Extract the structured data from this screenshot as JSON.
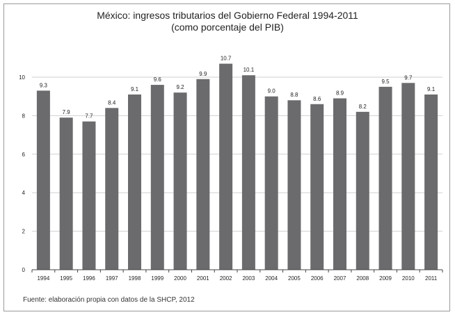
{
  "chart_data": {
    "type": "bar",
    "title": "México: ingresos tributarios del Gobierno Federal 1994-2011",
    "subtitle": "(como porcentaje del PIB)",
    "xlabel": "",
    "ylabel": "",
    "categories": [
      "1994",
      "1995",
      "1996",
      "1997",
      "1998",
      "1999",
      "2000",
      "2001",
      "2002",
      "2003",
      "2004",
      "2005",
      "2006",
      "2007",
      "2008",
      "2009",
      "2010",
      "2011"
    ],
    "values": [
      9.3,
      7.9,
      7.7,
      8.4,
      9.1,
      9.6,
      9.2,
      9.9,
      10.7,
      10.1,
      9.0,
      8.8,
      8.6,
      8.9,
      8.2,
      9.5,
      9.7,
      9.1
    ],
    "data_labels": [
      "9.3",
      "7.9",
      "7.7",
      "8.4",
      "9.1",
      "9.6",
      "9.2",
      "9.9",
      "10.7",
      "10.1",
      "9.0",
      "8.8",
      "8.6",
      "8.9",
      "8.2",
      "9.5",
      "9.7",
      "9.1"
    ],
    "ylim": [
      0,
      10
    ],
    "yticks": [
      0,
      2,
      4,
      6,
      8,
      10
    ],
    "grid": true,
    "legend": "none",
    "colors": {
      "bar": "#6b6b6d",
      "grid": "#cfcfcf",
      "axis": "#444444"
    }
  },
  "source": "Fuente: elaboración propia con datos de la SHCP, 2012"
}
